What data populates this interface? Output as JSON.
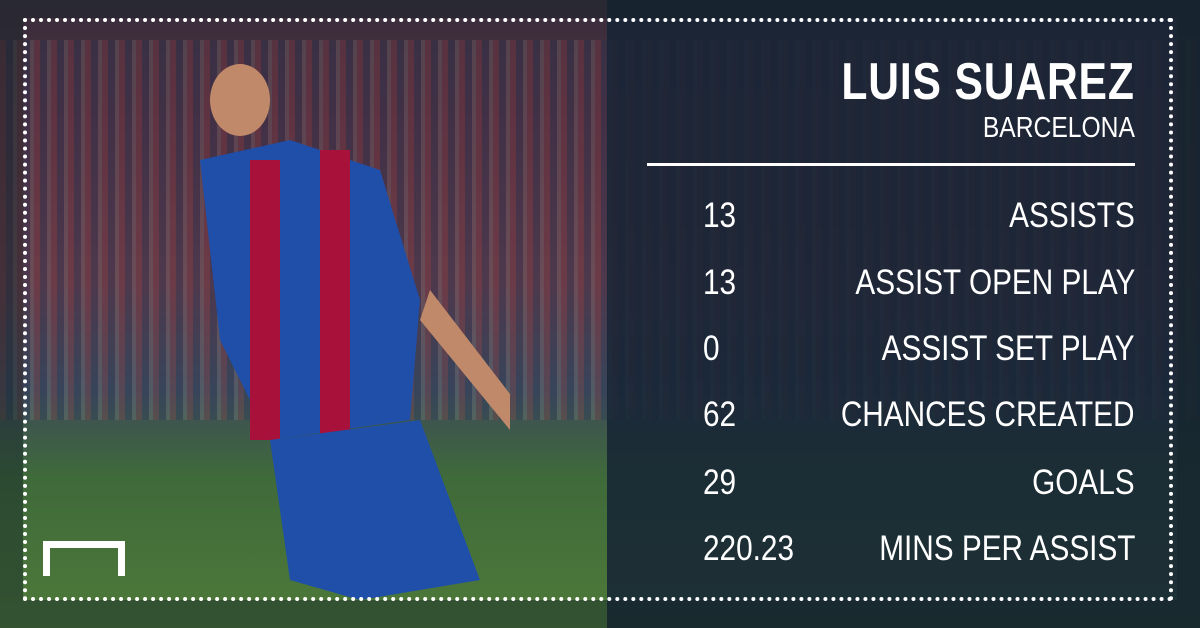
{
  "player": {
    "name": "LUIS SUAREZ",
    "club": "BARCELONA"
  },
  "stats": [
    {
      "value": "13",
      "label": "ASSISTS"
    },
    {
      "value": "13",
      "label": "ASSIST OPEN PLAY"
    },
    {
      "value": "0",
      "label": "ASSIST SET PLAY"
    },
    {
      "value": "62",
      "label": "CHANCES CREATED"
    },
    {
      "value": "29",
      "label": "GOALS"
    },
    {
      "value": "220.23",
      "label": "MINS PER ASSIST"
    }
  ],
  "colors": {
    "panel": "#16243a",
    "text": "#ffffff",
    "shirt_blue": "#1f4fa8",
    "shirt_red": "#a8123a"
  },
  "icons": [
    "goal-logo-icon"
  ]
}
